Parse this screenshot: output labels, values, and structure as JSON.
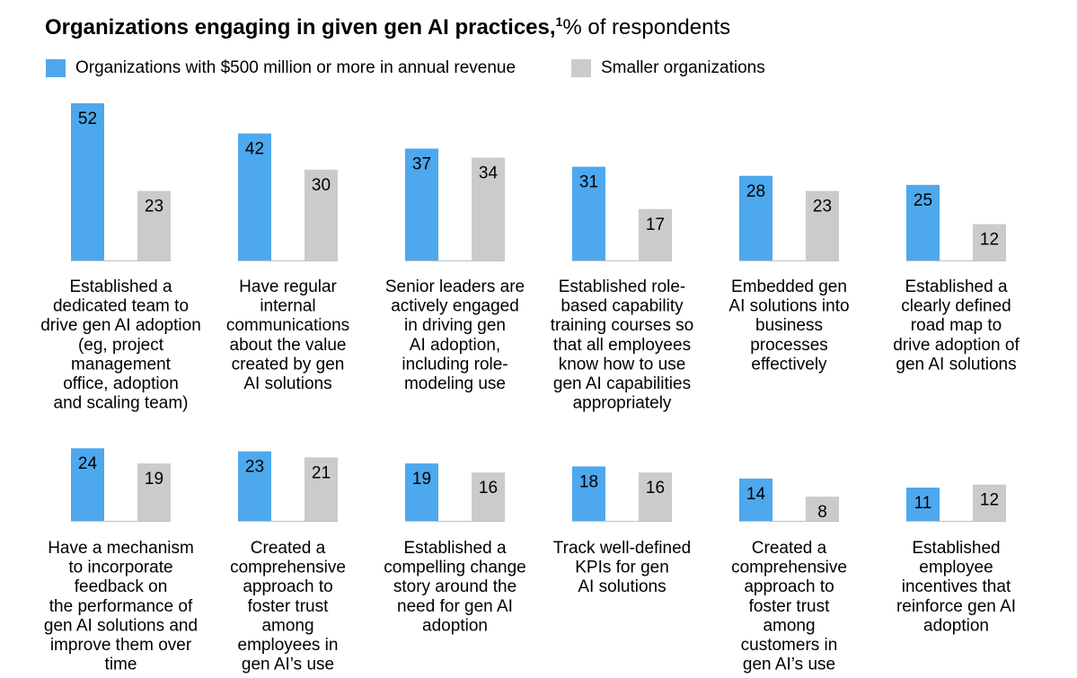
{
  "chart_data": {
    "type": "bar",
    "title": "Organizations engaging in given gen AI practices,",
    "title_footnote": "1",
    "unit_label": "% of respondents",
    "xlabel": "",
    "ylabel": "",
    "grid": false,
    "legend_position": "top-left",
    "colors": {
      "large": "#4DA8EE",
      "small": "#CBCBCB",
      "baseline": "#BFBFBF"
    },
    "series": [
      {
        "name": "Organizations with $500 million or more in annual revenue",
        "values": [
          52,
          42,
          37,
          31,
          28,
          25,
          24,
          23,
          19,
          18,
          14,
          11
        ]
      },
      {
        "name": "Smaller organizations",
        "values": [
          23,
          30,
          34,
          17,
          23,
          12,
          19,
          21,
          16,
          16,
          8,
          12
        ]
      }
    ],
    "categories": [
      [
        "Established a",
        "dedicated team to",
        "drive gen AI adoption",
        "(eg, project",
        "management",
        "office, adoption",
        "and scaling team)"
      ],
      [
        "Have regular",
        "internal",
        "communications",
        "about the value",
        "created by gen",
        "AI solutions"
      ],
      [
        "Senior leaders are",
        "actively engaged",
        "in driving gen",
        "AI adoption,",
        "including role-",
        "modeling use"
      ],
      [
        "Established role-",
        "based capability",
        "training courses so",
        "that all employees",
        "know how to use",
        "gen AI capabilities",
        "appropriately"
      ],
      [
        "Embedded gen",
        "AI solutions into",
        "business",
        "processes",
        "effectively"
      ],
      [
        "Established a",
        "clearly defined",
        "road map to",
        "drive adoption of",
        "gen AI solutions"
      ],
      [
        "Have a mechanism",
        "to incorporate",
        "feedback on",
        "the performance of",
        "gen AI solutions and",
        "improve them over",
        "time"
      ],
      [
        "Created a",
        "comprehensive",
        "approach to",
        "foster trust",
        "among",
        "employees in",
        "gen AI’s use"
      ],
      [
        "Established a",
        "compelling change",
        "story around the",
        "need for gen AI",
        "adoption"
      ],
      [
        "Track well-defined",
        "KPIs for gen",
        "AI solutions"
      ],
      [
        "Created a",
        "comprehensive",
        "approach to",
        "foster trust",
        "among",
        "customers in",
        "gen AI’s use"
      ],
      [
        "Established",
        "employee",
        "incentives that",
        "reinforce gen AI",
        "adoption"
      ]
    ]
  }
}
